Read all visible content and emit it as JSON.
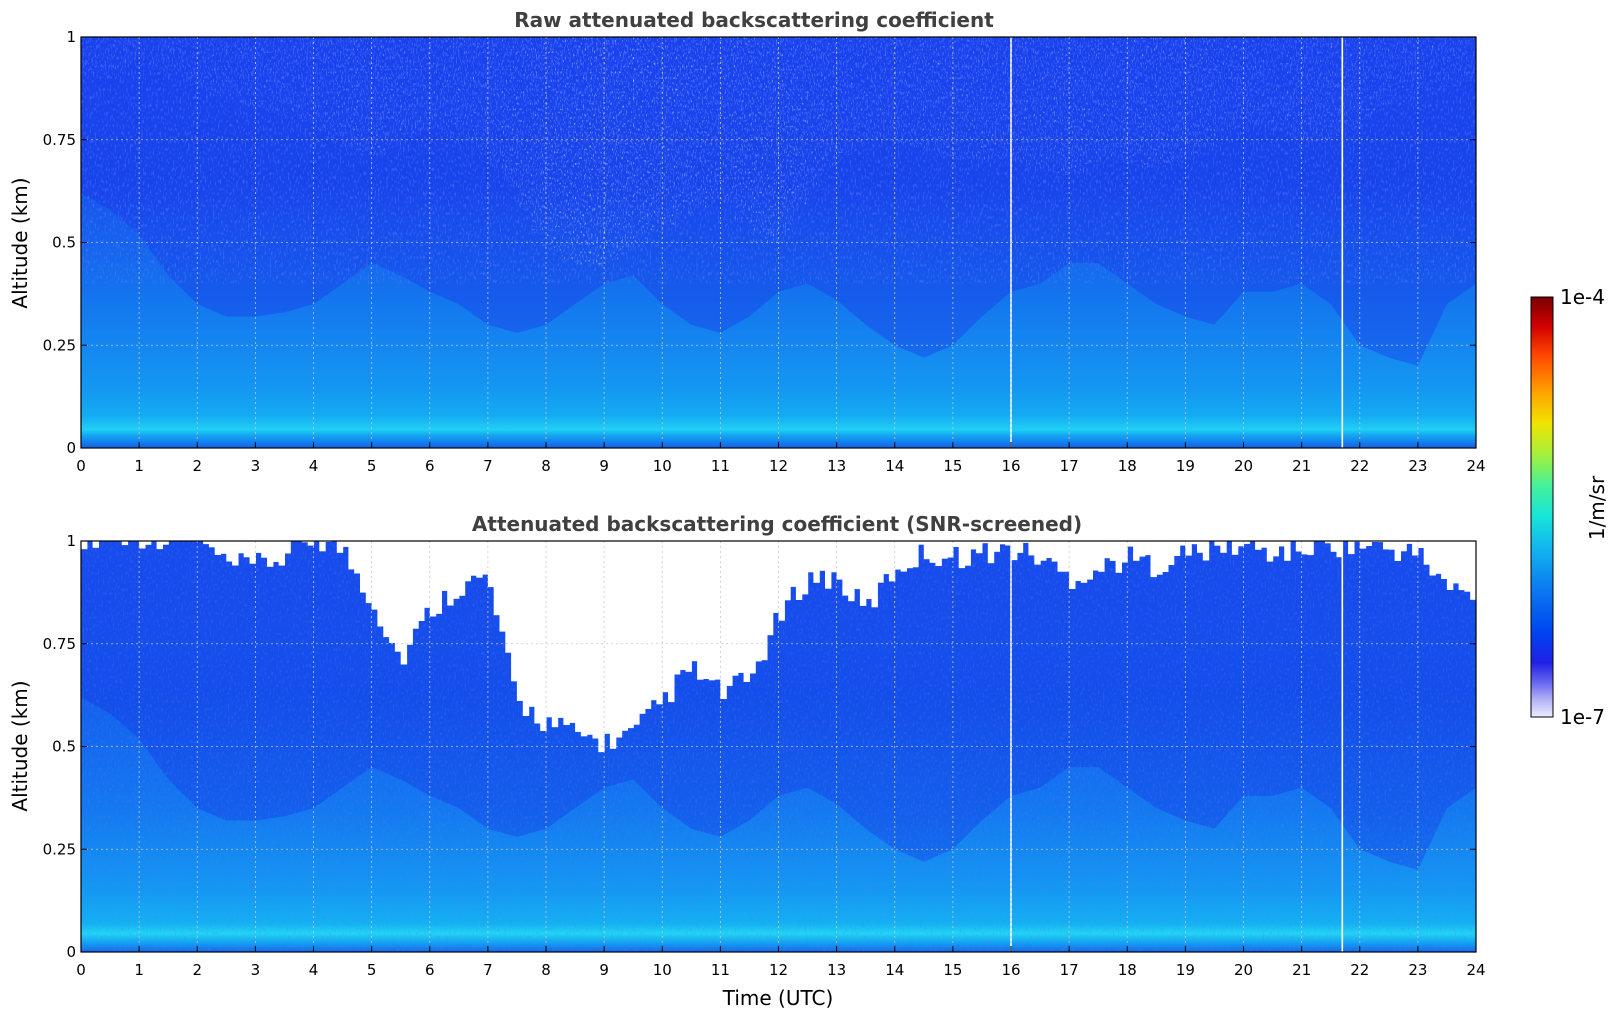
{
  "chart_data": [
    {
      "type": "heatmap",
      "title": "Raw attenuated backscattering coefficient",
      "xlabel": "",
      "ylabel": "Altitude (km)",
      "xlim": [
        0,
        24
      ],
      "ylim": [
        0,
        1
      ],
      "x_ticks": [
        "0",
        "1",
        "2",
        "3",
        "4",
        "5",
        "6",
        "7",
        "8",
        "9",
        "10",
        "11",
        "12",
        "13",
        "14",
        "15",
        "16",
        "17",
        "18",
        "19",
        "20",
        "21",
        "22",
        "23",
        "24"
      ],
      "y_ticks": [
        "0",
        "0.25",
        "0.5",
        "0.75",
        "1"
      ],
      "grid": true,
      "colorscale": [
        "#ececff",
        "#b4b4f8",
        "#6a6af0",
        "#2020e6",
        "#0044f0",
        "#0a78f0",
        "#12b4f0",
        "#18e6d6",
        "#44f09c",
        "#a0f040",
        "#f0e400",
        "#ff9c00",
        "#ff4800",
        "#d20000",
        "#780000"
      ],
      "columns_utc": [
        0,
        0.5,
        1,
        1.5,
        2,
        2.5,
        3,
        3.5,
        4,
        4.5,
        5,
        5.5,
        6,
        6.5,
        7,
        7.5,
        8,
        8.5,
        9,
        9.5,
        10,
        10.5,
        11,
        11.5,
        12,
        12.5,
        13,
        13.5,
        14,
        14.5,
        15,
        15.5,
        16,
        16.5,
        17,
        17.5,
        18,
        18.5,
        19,
        19.5,
        20,
        20.5,
        21,
        21.5,
        22,
        22.5,
        23,
        23.5,
        24
      ],
      "boundary_layer_top_km": [
        0.62,
        0.58,
        0.52,
        0.42,
        0.35,
        0.32,
        0.32,
        0.33,
        0.35,
        0.4,
        0.45,
        0.42,
        0.38,
        0.35,
        0.3,
        0.28,
        0.3,
        0.35,
        0.4,
        0.42,
        0.35,
        0.3,
        0.28,
        0.32,
        0.38,
        0.4,
        0.36,
        0.3,
        0.25,
        0.22,
        0.25,
        0.32,
        0.38,
        0.4,
        0.45,
        0.45,
        0.4,
        0.35,
        0.32,
        0.3,
        0.38,
        0.38,
        0.4,
        0.35,
        0.25,
        0.22,
        0.2,
        0.35,
        0.4
      ],
      "noise_fraction_aloft": [
        0.1,
        0.12,
        0.08,
        0.1,
        0.15,
        0.18,
        0.2,
        0.22,
        0.25,
        0.3,
        0.35,
        0.3,
        0.25,
        0.3,
        0.35,
        0.45,
        0.6,
        0.65,
        0.65,
        0.6,
        0.55,
        0.5,
        0.45,
        0.55,
        0.6,
        0.45,
        0.35,
        0.3,
        0.3,
        0.32,
        0.35,
        0.35,
        0.35,
        0.38,
        0.4,
        0.35,
        0.35,
        0.38,
        0.35,
        0.3,
        0.25,
        0.25,
        0.3,
        0.3,
        0.25,
        0.2,
        0.18,
        0.15,
        0.12
      ],
      "sampling_gaps_utc": [
        16.0,
        21.7
      ],
      "value_units": "1/m/sr"
    },
    {
      "type": "heatmap",
      "title": "Attenuated backscattering coefficient (SNR-screened)",
      "xlabel": "Time (UTC)",
      "ylabel": "Altitude (km)",
      "xlim": [
        0,
        24
      ],
      "ylim": [
        0,
        1
      ],
      "x_ticks": [
        "0",
        "1",
        "2",
        "3",
        "4",
        "5",
        "6",
        "7",
        "8",
        "9",
        "10",
        "11",
        "12",
        "13",
        "14",
        "15",
        "16",
        "17",
        "18",
        "19",
        "20",
        "21",
        "22",
        "23",
        "24"
      ],
      "y_ticks": [
        "0",
        "0.25",
        "0.5",
        "0.75",
        "1"
      ],
      "grid": true,
      "columns_utc": [
        0,
        0.5,
        1,
        1.5,
        2,
        2.5,
        3,
        3.5,
        4,
        4.5,
        5,
        5.5,
        6,
        6.5,
        7,
        7.5,
        8,
        8.5,
        9,
        9.5,
        10,
        10.5,
        11,
        11.5,
        12,
        12.5,
        13,
        13.5,
        14,
        14.5,
        15,
        15.5,
        16,
        16.5,
        17,
        17.5,
        18,
        18.5,
        19,
        19.5,
        20,
        20.5,
        21,
        21.5,
        22,
        22.5,
        23,
        23.5,
        24
      ],
      "screened_below_km": [
        1,
        1,
        1,
        1,
        1,
        0.93,
        0.93,
        0.95,
        1,
        0.97,
        0.85,
        0.7,
        0.82,
        0.88,
        0.9,
        0.6,
        0.55,
        0.52,
        0.5,
        0.52,
        0.6,
        0.68,
        0.62,
        0.65,
        0.8,
        0.9,
        0.9,
        0.82,
        0.92,
        0.96,
        0.95,
        0.96,
        0.97,
        0.95,
        0.9,
        0.92,
        0.95,
        0.93,
        0.96,
        0.97,
        0.98,
        0.96,
        0.97,
        0.98,
        0.98,
        0.97,
        0.96,
        0.88,
        0.85
      ],
      "sampling_gaps_utc": [
        16.0,
        21.7
      ],
      "value_units": "1/m/sr"
    }
  ],
  "colorbar": {
    "label": "1/m/sr",
    "max_label": "1e-4",
    "min_label": "1e-7",
    "min_value": 1e-07,
    "max_value": 0.0001,
    "scale": "log"
  }
}
